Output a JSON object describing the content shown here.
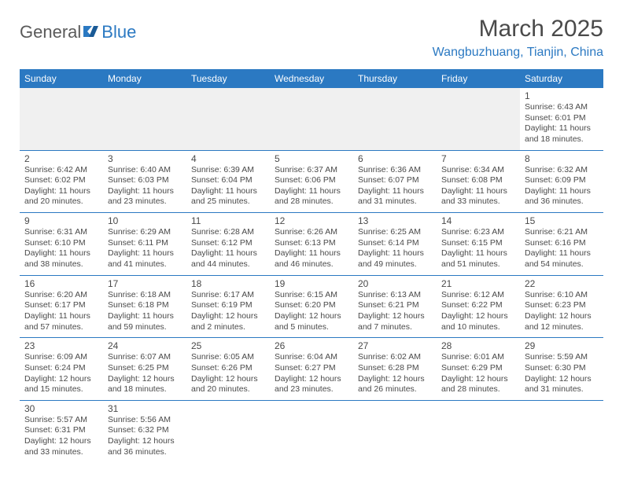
{
  "logo": {
    "part1": "General",
    "part2": "Blue"
  },
  "title": "March 2025",
  "location": "Wangbuzhuang, Tianjin, China",
  "colors": {
    "header_bg": "#2b79c2",
    "header_text": "#ffffff",
    "border": "#2b79c2",
    "text": "#4a4a4a",
    "accent": "#2b79c2",
    "empty_bg": "#f0f0f0"
  },
  "weekdays": [
    "Sunday",
    "Monday",
    "Tuesday",
    "Wednesday",
    "Thursday",
    "Friday",
    "Saturday"
  ],
  "weeks": [
    [
      null,
      null,
      null,
      null,
      null,
      null,
      {
        "n": "1",
        "sr": "Sunrise: 6:43 AM",
        "ss": "Sunset: 6:01 PM",
        "d1": "Daylight: 11 hours",
        "d2": "and 18 minutes."
      }
    ],
    [
      {
        "n": "2",
        "sr": "Sunrise: 6:42 AM",
        "ss": "Sunset: 6:02 PM",
        "d1": "Daylight: 11 hours",
        "d2": "and 20 minutes."
      },
      {
        "n": "3",
        "sr": "Sunrise: 6:40 AM",
        "ss": "Sunset: 6:03 PM",
        "d1": "Daylight: 11 hours",
        "d2": "and 23 minutes."
      },
      {
        "n": "4",
        "sr": "Sunrise: 6:39 AM",
        "ss": "Sunset: 6:04 PM",
        "d1": "Daylight: 11 hours",
        "d2": "and 25 minutes."
      },
      {
        "n": "5",
        "sr": "Sunrise: 6:37 AM",
        "ss": "Sunset: 6:06 PM",
        "d1": "Daylight: 11 hours",
        "d2": "and 28 minutes."
      },
      {
        "n": "6",
        "sr": "Sunrise: 6:36 AM",
        "ss": "Sunset: 6:07 PM",
        "d1": "Daylight: 11 hours",
        "d2": "and 31 minutes."
      },
      {
        "n": "7",
        "sr": "Sunrise: 6:34 AM",
        "ss": "Sunset: 6:08 PM",
        "d1": "Daylight: 11 hours",
        "d2": "and 33 minutes."
      },
      {
        "n": "8",
        "sr": "Sunrise: 6:32 AM",
        "ss": "Sunset: 6:09 PM",
        "d1": "Daylight: 11 hours",
        "d2": "and 36 minutes."
      }
    ],
    [
      {
        "n": "9",
        "sr": "Sunrise: 6:31 AM",
        "ss": "Sunset: 6:10 PM",
        "d1": "Daylight: 11 hours",
        "d2": "and 38 minutes."
      },
      {
        "n": "10",
        "sr": "Sunrise: 6:29 AM",
        "ss": "Sunset: 6:11 PM",
        "d1": "Daylight: 11 hours",
        "d2": "and 41 minutes."
      },
      {
        "n": "11",
        "sr": "Sunrise: 6:28 AM",
        "ss": "Sunset: 6:12 PM",
        "d1": "Daylight: 11 hours",
        "d2": "and 44 minutes."
      },
      {
        "n": "12",
        "sr": "Sunrise: 6:26 AM",
        "ss": "Sunset: 6:13 PM",
        "d1": "Daylight: 11 hours",
        "d2": "and 46 minutes."
      },
      {
        "n": "13",
        "sr": "Sunrise: 6:25 AM",
        "ss": "Sunset: 6:14 PM",
        "d1": "Daylight: 11 hours",
        "d2": "and 49 minutes."
      },
      {
        "n": "14",
        "sr": "Sunrise: 6:23 AM",
        "ss": "Sunset: 6:15 PM",
        "d1": "Daylight: 11 hours",
        "d2": "and 51 minutes."
      },
      {
        "n": "15",
        "sr": "Sunrise: 6:21 AM",
        "ss": "Sunset: 6:16 PM",
        "d1": "Daylight: 11 hours",
        "d2": "and 54 minutes."
      }
    ],
    [
      {
        "n": "16",
        "sr": "Sunrise: 6:20 AM",
        "ss": "Sunset: 6:17 PM",
        "d1": "Daylight: 11 hours",
        "d2": "and 57 minutes."
      },
      {
        "n": "17",
        "sr": "Sunrise: 6:18 AM",
        "ss": "Sunset: 6:18 PM",
        "d1": "Daylight: 11 hours",
        "d2": "and 59 minutes."
      },
      {
        "n": "18",
        "sr": "Sunrise: 6:17 AM",
        "ss": "Sunset: 6:19 PM",
        "d1": "Daylight: 12 hours",
        "d2": "and 2 minutes."
      },
      {
        "n": "19",
        "sr": "Sunrise: 6:15 AM",
        "ss": "Sunset: 6:20 PM",
        "d1": "Daylight: 12 hours",
        "d2": "and 5 minutes."
      },
      {
        "n": "20",
        "sr": "Sunrise: 6:13 AM",
        "ss": "Sunset: 6:21 PM",
        "d1": "Daylight: 12 hours",
        "d2": "and 7 minutes."
      },
      {
        "n": "21",
        "sr": "Sunrise: 6:12 AM",
        "ss": "Sunset: 6:22 PM",
        "d1": "Daylight: 12 hours",
        "d2": "and 10 minutes."
      },
      {
        "n": "22",
        "sr": "Sunrise: 6:10 AM",
        "ss": "Sunset: 6:23 PM",
        "d1": "Daylight: 12 hours",
        "d2": "and 12 minutes."
      }
    ],
    [
      {
        "n": "23",
        "sr": "Sunrise: 6:09 AM",
        "ss": "Sunset: 6:24 PM",
        "d1": "Daylight: 12 hours",
        "d2": "and 15 minutes."
      },
      {
        "n": "24",
        "sr": "Sunrise: 6:07 AM",
        "ss": "Sunset: 6:25 PM",
        "d1": "Daylight: 12 hours",
        "d2": "and 18 minutes."
      },
      {
        "n": "25",
        "sr": "Sunrise: 6:05 AM",
        "ss": "Sunset: 6:26 PM",
        "d1": "Daylight: 12 hours",
        "d2": "and 20 minutes."
      },
      {
        "n": "26",
        "sr": "Sunrise: 6:04 AM",
        "ss": "Sunset: 6:27 PM",
        "d1": "Daylight: 12 hours",
        "d2": "and 23 minutes."
      },
      {
        "n": "27",
        "sr": "Sunrise: 6:02 AM",
        "ss": "Sunset: 6:28 PM",
        "d1": "Daylight: 12 hours",
        "d2": "and 26 minutes."
      },
      {
        "n": "28",
        "sr": "Sunrise: 6:01 AM",
        "ss": "Sunset: 6:29 PM",
        "d1": "Daylight: 12 hours",
        "d2": "and 28 minutes."
      },
      {
        "n": "29",
        "sr": "Sunrise: 5:59 AM",
        "ss": "Sunset: 6:30 PM",
        "d1": "Daylight: 12 hours",
        "d2": "and 31 minutes."
      }
    ],
    [
      {
        "n": "30",
        "sr": "Sunrise: 5:57 AM",
        "ss": "Sunset: 6:31 PM",
        "d1": "Daylight: 12 hours",
        "d2": "and 33 minutes."
      },
      {
        "n": "31",
        "sr": "Sunrise: 5:56 AM",
        "ss": "Sunset: 6:32 PM",
        "d1": "Daylight: 12 hours",
        "d2": "and 36 minutes."
      },
      null,
      null,
      null,
      null,
      null
    ]
  ]
}
